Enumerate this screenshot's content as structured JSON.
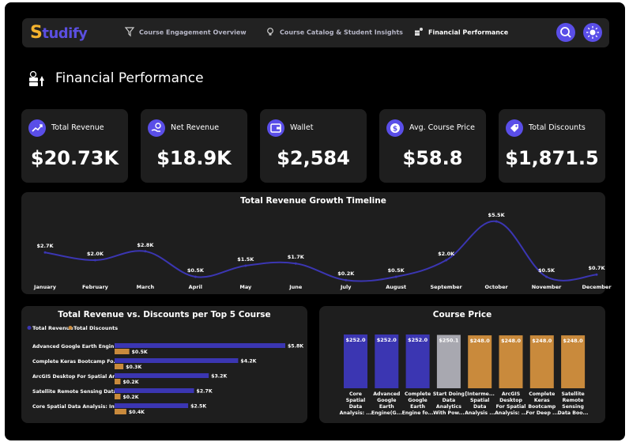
{
  "nav": {
    "logo_first": "S",
    "logo_rest": "tudify",
    "tabs": [
      {
        "label": "Course Engagement Overview",
        "icon": "filter-funnel-icon"
      },
      {
        "label": "Course Catalog & Student Insights",
        "icon": "lightbulb-icon"
      },
      {
        "label": "Financial Performance",
        "icon": "money-stack-icon"
      }
    ],
    "search_icon": "search-icon",
    "theme_icon": "sun-icon"
  },
  "page": {
    "title": "Financial Performance"
  },
  "kpis": [
    {
      "label": "Total Revenue",
      "value": "$20.73K",
      "icon": "chart-up-icon"
    },
    {
      "label": "Net Revenue",
      "value": "$18.9K",
      "icon": "hand-coin-icon"
    },
    {
      "label": "Wallet",
      "value": "$2,584",
      "icon": "wallet-icon"
    },
    {
      "label": "Avg. Course Price",
      "value": "$58.8",
      "icon": "dollar-coin-icon"
    },
    {
      "label": "Total Discounts",
      "value": "$1,871.5",
      "icon": "price-tag-icon"
    }
  ],
  "colors": {
    "accent": "#5a4ee8",
    "revenue": "#3b36b2",
    "discount": "#c98a3c",
    "gray_bar": "#a8a8b0",
    "panel": "#1e1e1e"
  },
  "chart_data": [
    {
      "type": "line",
      "title": "Total Revenue Growth Timeline",
      "categories": [
        "January",
        "February",
        "March",
        "April",
        "May",
        "June",
        "July",
        "August",
        "September",
        "October",
        "November",
        "December"
      ],
      "values": [
        2.7,
        2.0,
        2.8,
        0.5,
        1.5,
        1.7,
        0.2,
        0.5,
        2.0,
        5.5,
        0.5,
        0.7
      ],
      "data_labels": [
        "$2.7K",
        "$2.0K",
        "$2.8K",
        "$0.5K",
        "$1.5K",
        "$1.7K",
        "$0.2K",
        "$0.5K",
        "$2.0K",
        "$5.5K",
        "$0.5K",
        "$0.7K"
      ],
      "ylim": [
        0,
        6
      ]
    },
    {
      "type": "bar",
      "orientation": "horizontal",
      "title": "Total Revenue vs. Discounts per Top 5 Course",
      "legend": "top-left",
      "categories": [
        "Advanced Google Earth Engin...",
        "Complete Keras Bootcamp Fo...",
        "ArcGIS Desktop For Spatial An...",
        "Satellite Remote Sensing Data...",
        "Core Spatial Data Analysis: Int..."
      ],
      "series": [
        {
          "name": "Total Revenue",
          "values": [
            5.8,
            4.2,
            3.2,
            2.7,
            2.5
          ],
          "labels": [
            "$5.8K",
            "$4.2K",
            "$3.2K",
            "$2.7K",
            "$2.5K"
          ]
        },
        {
          "name": "Total Discounts",
          "values": [
            0.5,
            0.3,
            0.2,
            0.2,
            0.4
          ],
          "labels": [
            "$0.5K",
            "$0.3K",
            "$0.2K",
            "$0.2K",
            "$0.4K"
          ]
        }
      ]
    },
    {
      "type": "bar",
      "title": "Course Price",
      "categories": [
        [
          "Core",
          "Spatial",
          "Data",
          "Analysis: ..."
        ],
        [
          "Advanced",
          "Google",
          "Earth",
          "Engine(G..."
        ],
        [
          "Complete",
          "Google",
          "Earth",
          "Engine fo..."
        ],
        [
          "Start Doing",
          "Data",
          "Analytics",
          "With Pow..."
        ],
        [
          "[Interme...",
          "Spatial",
          "Data",
          "Analysis ..."
        ],
        [
          "ArcGIS",
          "Desktop",
          "For Spatial",
          "Analysis: ..."
        ],
        [
          "Complete",
          "Keras",
          "Bootcamp",
          "For Deep ..."
        ],
        [
          "Satellite",
          "Remote",
          "Sensing",
          "Data Boo..."
        ]
      ],
      "values": [
        252.0,
        252.0,
        252.0,
        250.1,
        248.0,
        248.0,
        248.0,
        248.0
      ],
      "labels": [
        "$252.0",
        "$252.0",
        "$252.0",
        "$250.1",
        "$248.0",
        "$248.0",
        "$248.0",
        "$248.0"
      ],
      "bar_colors": [
        "#3b36b2",
        "#3b36b2",
        "#3b36b2",
        "#a8a8b0",
        "#c98a3c",
        "#c98a3c",
        "#c98a3c",
        "#c98a3c"
      ]
    }
  ]
}
